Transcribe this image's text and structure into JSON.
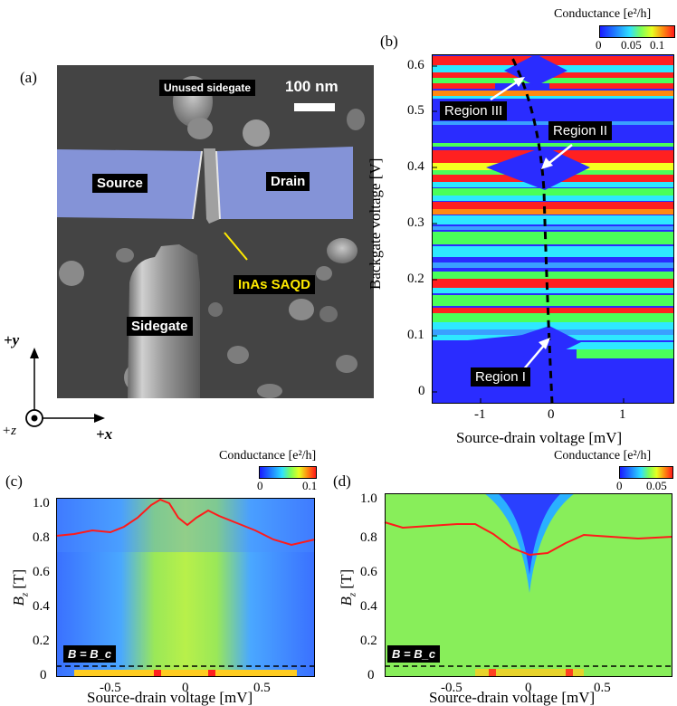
{
  "panel_a": {
    "label": "(a)",
    "scalebar": "100 nm",
    "unused_sidegate": "Unused sidegate",
    "source": "Source",
    "drain": "Drain",
    "dot": "InAs SAQD",
    "sidegate": "Sidegate",
    "axis_y": "+y",
    "axis_x": "+x",
    "axis_z": "+z"
  },
  "panel_b": {
    "label": "(b)",
    "cbar_title": "Conductance [e²/h]",
    "cbar_ticks": [
      "0",
      "0.05",
      "0.1"
    ],
    "xlabel": "Source-drain voltage [mV]",
    "ylabel": "Backgate voltage [V]",
    "xticks": [
      "-1",
      "0",
      "1"
    ],
    "yticks": [
      "0",
      "0.1",
      "0.2",
      "0.3",
      "0.4",
      "0.5",
      "0.6"
    ],
    "region1": "Region I",
    "region2": "Region II",
    "region3": "Region III"
  },
  "panel_c": {
    "label": "(c)",
    "cbar_title": "Conductance [e²/h]",
    "cbar_ticks": [
      "0",
      "0.1"
    ],
    "xlabel": "Source-drain voltage [mV]",
    "ylabel": "B_z [T]",
    "xticks": [
      "-0.5",
      "0",
      "0.5"
    ],
    "yticks": [
      "0",
      "0.2",
      "0.4",
      "0.6",
      "0.8",
      "1.0"
    ],
    "annotation": "B = B_c"
  },
  "panel_d": {
    "label": "(d)",
    "cbar_title": "Conductance [e²/h]",
    "cbar_ticks": [
      "0",
      "0.05"
    ],
    "xlabel": "Source-drain voltage [mV]",
    "ylabel": "B_z [T]",
    "xticks": [
      "-0.5",
      "0",
      "0.5"
    ],
    "yticks": [
      "0",
      "0.2",
      "0.4",
      "0.6",
      "0.8",
      "1.0"
    ],
    "annotation": "B = B_c"
  },
  "chart_data": [
    {
      "type": "heatmap",
      "panel": "b",
      "xlabel": "Source-drain voltage [mV]",
      "ylabel": "Backgate voltage [V]",
      "xlim": [
        -1.8,
        1.8
      ],
      "ylim": [
        0,
        0.62
      ],
      "colorbar": {
        "label": "Conductance [e²/h]",
        "range": [
          0,
          0.12
        ],
        "ticks": [
          0,
          0.05,
          0.1
        ]
      },
      "annotations": [
        "Region I",
        "Region II",
        "Region III"
      ],
      "dashed_line": {
        "x": [
          0.0,
          -0.05,
          -0.15,
          -0.3,
          -0.45
        ],
        "y": [
          0.0,
          0.1,
          0.3,
          0.45,
          0.62
        ]
      }
    },
    {
      "type": "heatmap",
      "panel": "c",
      "xlabel": "Source-drain voltage [mV]",
      "ylabel": "B_z [T]",
      "xlim": [
        -0.85,
        0.85
      ],
      "ylim": [
        0,
        1.0
      ],
      "colorbar": {
        "label": "Conductance [e²/h]",
        "range": [
          0,
          0.1
        ],
        "ticks": [
          0,
          0.1
        ]
      },
      "threshold_line_Bz": 0.06,
      "linecut": {
        "x": [
          -0.85,
          -0.6,
          -0.4,
          -0.25,
          -0.15,
          0.0,
          0.1,
          0.25,
          0.4,
          0.6,
          0.85
        ],
        "y": [
          0.74,
          0.78,
          0.82,
          0.9,
          1.0,
          0.82,
          0.93,
          0.88,
          0.8,
          0.72,
          0.7
        ]
      }
    },
    {
      "type": "heatmap",
      "panel": "d",
      "xlabel": "Source-drain voltage [mV]",
      "ylabel": "B_z [T]",
      "xlim": [
        -0.95,
        0.95
      ],
      "ylim": [
        0,
        1.0
      ],
      "colorbar": {
        "label": "Conductance [e²/h]",
        "range": [
          0,
          0.06
        ],
        "ticks": [
          0,
          0.05
        ]
      },
      "threshold_line_Bz": 0.06,
      "linecut": {
        "x": [
          -0.95,
          -0.5,
          -0.3,
          -0.15,
          0.0,
          0.15,
          0.3,
          0.5,
          0.95
        ],
        "y": [
          0.83,
          0.82,
          0.8,
          0.7,
          0.63,
          0.66,
          0.78,
          0.8,
          0.78
        ]
      }
    }
  ]
}
